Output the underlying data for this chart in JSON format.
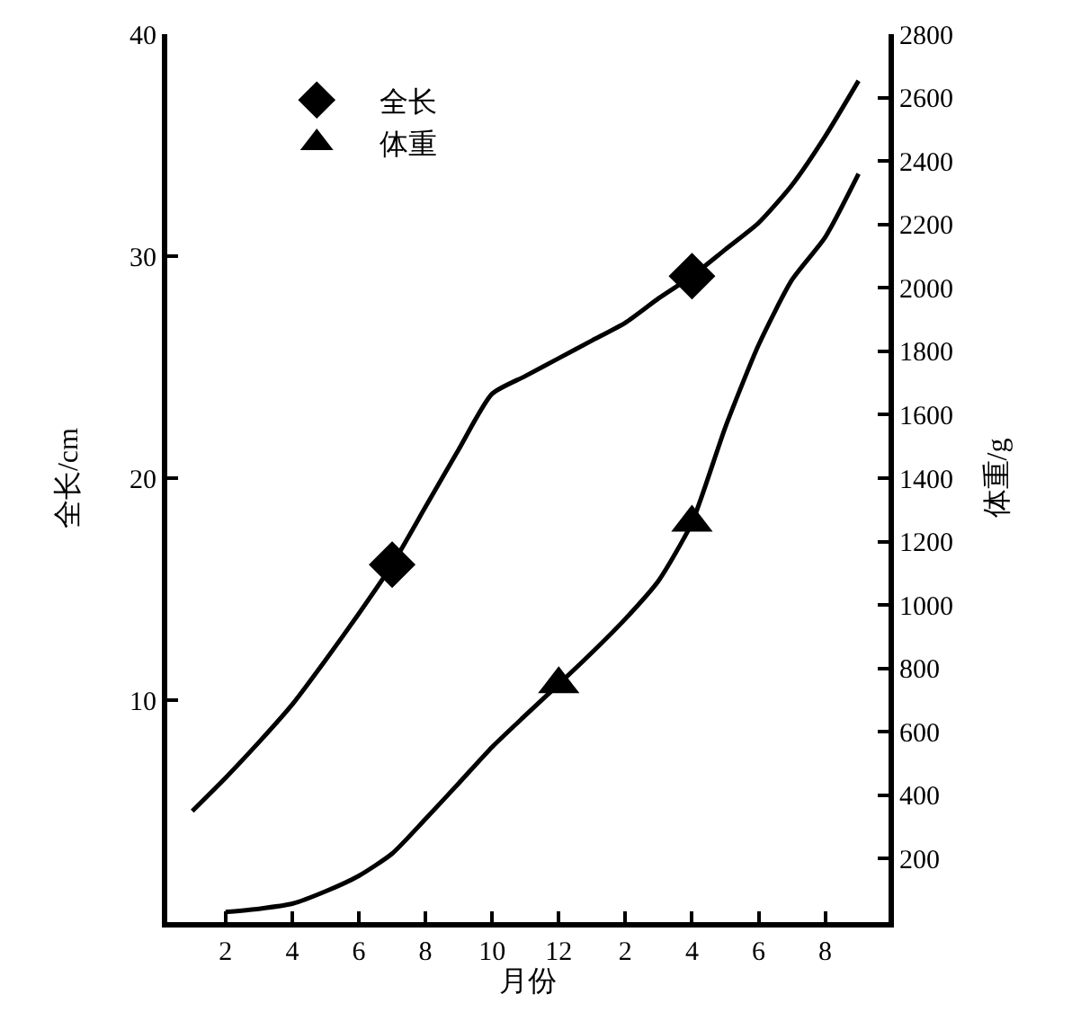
{
  "chart_data": {
    "type": "line",
    "xlabel": "月份",
    "ylabel": "全长/cm",
    "y2label": "体重/g",
    "categories": [
      null,
      "2",
      null,
      "4",
      null,
      "6",
      null,
      "8",
      null,
      "10",
      null,
      "12",
      null,
      "2",
      null,
      "4",
      null,
      "6",
      null,
      "8",
      null
    ],
    "ylim": [
      0,
      40
    ],
    "yticks": [
      10,
      20,
      30,
      40
    ],
    "y2lim": [
      0,
      2800
    ],
    "y2ticks": [
      200,
      400,
      600,
      800,
      1000,
      1200,
      1400,
      1600,
      1800,
      2000,
      2200,
      2400,
      2600,
      2800
    ],
    "legend": "top left",
    "line_style": "solid",
    "series": [
      {
        "color": "#000000",
        "values": [
          5.0,
          6.5,
          8.1,
          9.8,
          11.8,
          13.9,
          16.1,
          18.7,
          21.3,
          23.8,
          24.6,
          25.4,
          26.2,
          27.0,
          28.1,
          29.1,
          30.3,
          31.5,
          33.2,
          35.4,
          37.9
        ]
      },
      {
        "color": "#000000",
        "axis": "y2",
        "values": [
          null,
          32,
          42,
          58,
          97,
          146,
          216,
          325,
          438,
          552,
          652,
          750,
          850,
          956,
          1077,
          1260,
          1560,
          1820,
          2025,
          2160,
          2360
        ]
      },
      {
        "type": "scatter",
        "name": "全长",
        "color": "#000000",
        "marker": "diamond",
        "values": [
          null,
          null,
          null,
          null,
          null,
          null,
          16.1,
          null,
          null,
          null,
          null,
          null,
          null,
          null,
          null,
          29.1,
          null,
          null,
          null,
          null,
          null
        ]
      },
      {
        "type": "scatter",
        "name": "体重",
        "color": "#000000",
        "marker": "triangle",
        "axis": "y2",
        "values": [
          null,
          null,
          null,
          null,
          null,
          null,
          null,
          null,
          null,
          null,
          null,
          750,
          null,
          null,
          null,
          1260,
          null,
          null,
          null,
          null,
          null
        ]
      }
    ]
  }
}
